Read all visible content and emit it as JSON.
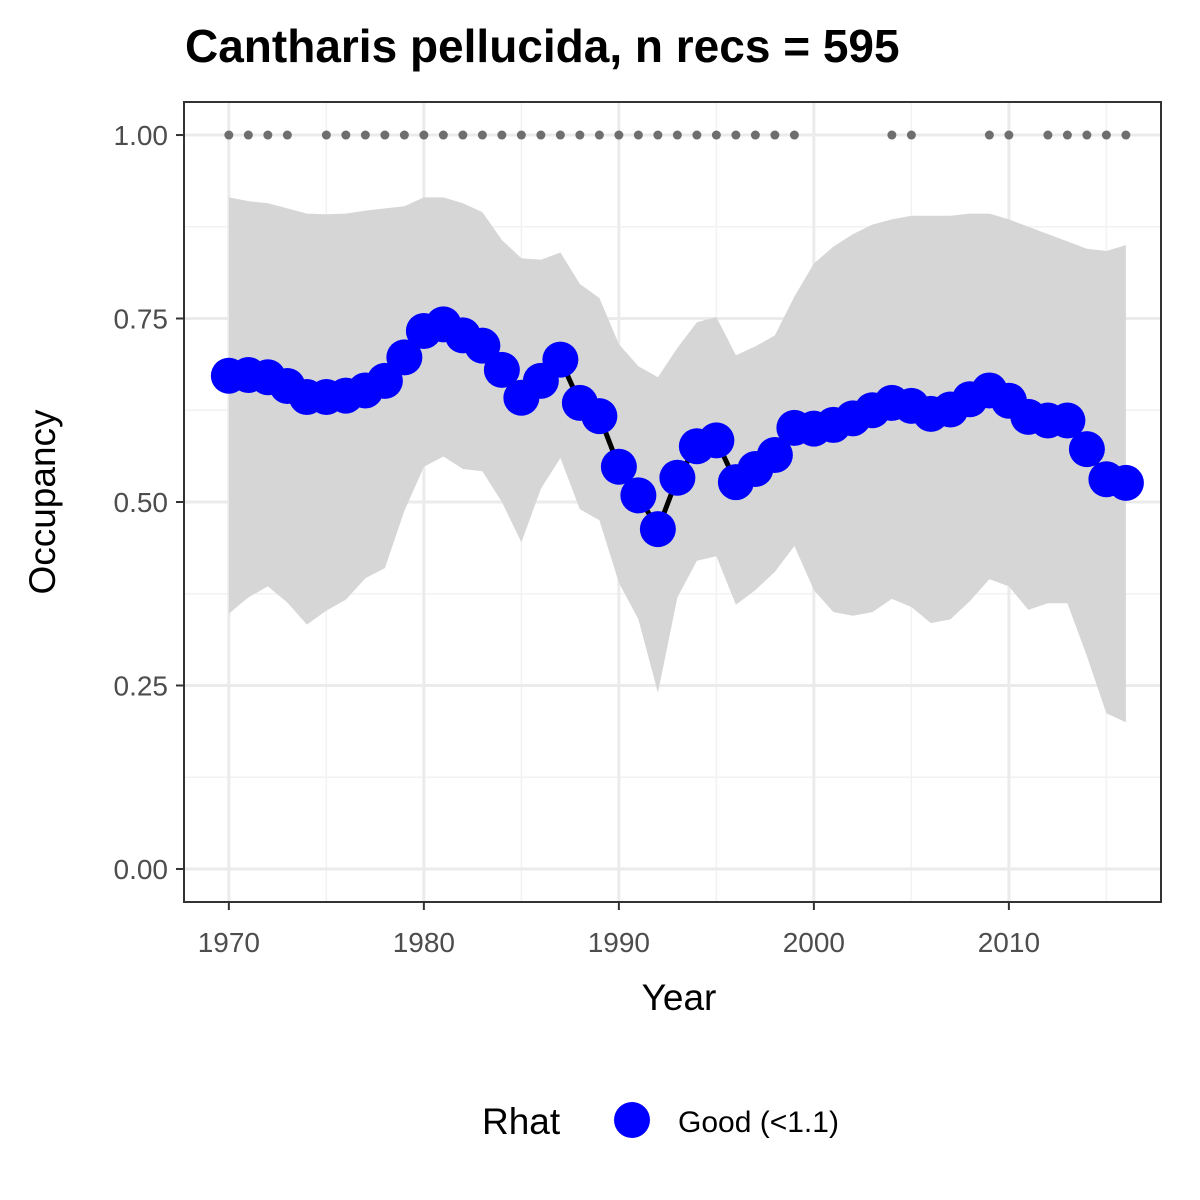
{
  "chart_data": {
    "type": "line",
    "title": "Cantharis pellucida, n recs = 595",
    "xlabel": "Year",
    "ylabel": "Occupancy",
    "xlim": [
      1967.7,
      1917.8
    ],
    "ylim": [
      -0.045,
      1.045
    ],
    "x_ticks": [
      1970,
      1980,
      1990,
      2000,
      2010
    ],
    "x_tick_labels": [
      "1970",
      "1980",
      "1990",
      "2000",
      "2010"
    ],
    "y_ticks": [
      0,
      0.25,
      0.5,
      0.75,
      1.0
    ],
    "y_tick_labels": [
      "0.00",
      "0.25",
      "0.50",
      "0.75",
      "1.00"
    ],
    "grid": true,
    "series": [
      {
        "name": "Good (<1.1)",
        "x": [
          1970,
          1971,
          1972,
          1973,
          1974,
          1975,
          1976,
          1977,
          1978,
          1979,
          1980,
          1981,
          1982,
          1983,
          1984,
          1985,
          1986,
          1987,
          1988,
          1989,
          1990,
          1991,
          1992,
          1993,
          1994,
          1995,
          1996,
          1997,
          1998,
          1999,
          2000,
          2001,
          2002,
          2003,
          2004,
          2005,
          2006,
          2007,
          2008,
          2009,
          2010,
          2011,
          2012,
          2013,
          2014,
          2015,
          2016
        ],
        "values": [
          0.672,
          0.673,
          0.67,
          0.658,
          0.643,
          0.643,
          0.645,
          0.652,
          0.665,
          0.697,
          0.733,
          0.742,
          0.727,
          0.713,
          0.68,
          0.642,
          0.665,
          0.694,
          0.635,
          0.617,
          0.548,
          0.509,
          0.463,
          0.533,
          0.576,
          0.584,
          0.527,
          0.545,
          0.564,
          0.601,
          0.6,
          0.605,
          0.614,
          0.625,
          0.635,
          0.631,
          0.62,
          0.626,
          0.64,
          0.652,
          0.638,
          0.616,
          0.611,
          0.611,
          0.572,
          0.531,
          0.526
        ],
        "lower": [
          0.348,
          0.37,
          0.385,
          0.363,
          0.333,
          0.352,
          0.367,
          0.396,
          0.41,
          0.488,
          0.548,
          0.562,
          0.545,
          0.542,
          0.5,
          0.445,
          0.518,
          0.56,
          0.49,
          0.475,
          0.39,
          0.34,
          0.24,
          0.37,
          0.42,
          0.426,
          0.36,
          0.38,
          0.405,
          0.44,
          0.38,
          0.35,
          0.345,
          0.35,
          0.368,
          0.357,
          0.335,
          0.34,
          0.365,
          0.395,
          0.385,
          0.353,
          0.362,
          0.362,
          0.29,
          0.212,
          0.2
        ],
        "upper": [
          0.915,
          0.91,
          0.907,
          0.9,
          0.893,
          0.892,
          0.893,
          0.897,
          0.9,
          0.903,
          0.915,
          0.915,
          0.907,
          0.895,
          0.857,
          0.832,
          0.83,
          0.84,
          0.797,
          0.778,
          0.715,
          0.685,
          0.67,
          0.71,
          0.745,
          0.752,
          0.7,
          0.712,
          0.727,
          0.78,
          0.825,
          0.848,
          0.865,
          0.878,
          0.885,
          0.89,
          0.89,
          0.89,
          0.893,
          0.893,
          0.885,
          0.875,
          0.865,
          0.855,
          0.845,
          0.842,
          0.85
        ],
        "color": "#0000ff"
      }
    ],
    "recorded_years": [
      1970,
      1971,
      1972,
      1973,
      1975,
      1976,
      1977,
      1978,
      1979,
      1980,
      1981,
      1982,
      1983,
      1984,
      1985,
      1986,
      1987,
      1988,
      1989,
      1990,
      1991,
      1992,
      1993,
      1994,
      1995,
      1996,
      1997,
      1998,
      1999,
      2004,
      2005,
      2009,
      2010,
      2012,
      2013,
      2014,
      2015,
      2016
    ],
    "recorded_marker_value": 1.0,
    "ribbon_color": "#d6d6d6",
    "line_color": "#000000",
    "marker_color": "#0000ff",
    "legend": {
      "title": "Rhat",
      "label": "Good (<1.1)",
      "position": "bottom"
    }
  }
}
